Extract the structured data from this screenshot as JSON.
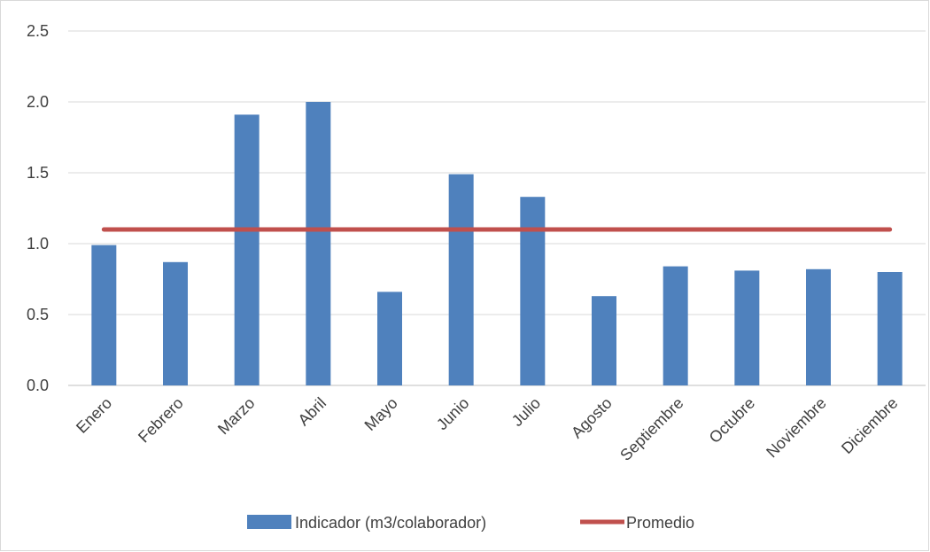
{
  "chart_data": {
    "type": "bar",
    "title": "",
    "xlabel": "",
    "ylabel": "",
    "categories": [
      "Enero",
      "Febrero",
      "Marzo",
      "Abril",
      "Mayo",
      "Junio",
      "Julio",
      "Agosto",
      "Septiembre",
      "Octubre",
      "Noviembre",
      "Diciembre"
    ],
    "y_ticks": [
      "0.0",
      "0.5",
      "1.0",
      "1.5",
      "2.0",
      "2.5"
    ],
    "ylim": [
      0,
      2.5
    ],
    "grid": true,
    "legend_position": "bottom",
    "series": [
      {
        "name": "Indicador (m3/colaborador)",
        "type": "bar",
        "color": "#4f81bd",
        "values": [
          0.99,
          0.87,
          1.91,
          2.0,
          0.66,
          1.49,
          1.33,
          0.63,
          0.84,
          0.81,
          0.82,
          0.8
        ]
      },
      {
        "name": "Promedio",
        "type": "line",
        "color": "#c0504d",
        "values": [
          1.1,
          1.1,
          1.1,
          1.1,
          1.1,
          1.1,
          1.1,
          1.1,
          1.1,
          1.1,
          1.1,
          1.1
        ]
      }
    ]
  }
}
